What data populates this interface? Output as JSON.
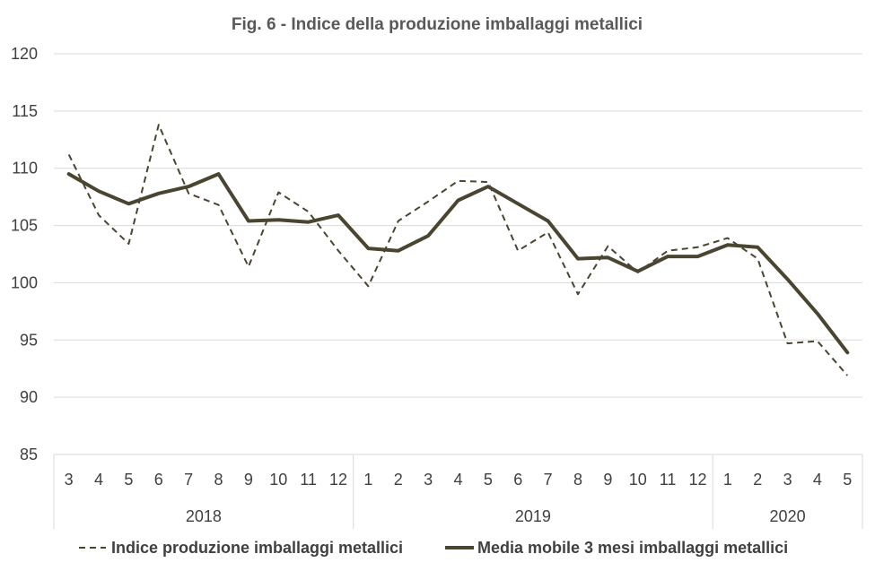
{
  "chart_data": {
    "type": "line",
    "title": "Fig. 6 - Indice della produzione imballaggi metallici",
    "xlabel": "",
    "ylabel": "",
    "ylim": [
      85,
      120
    ],
    "yticks": [
      "85",
      "90",
      "95",
      "100",
      "105",
      "110",
      "115",
      "120"
    ],
    "grid": true,
    "legend_position": "bottom",
    "categories": [
      "3",
      "4",
      "5",
      "6",
      "7",
      "8",
      "9",
      "10",
      "11",
      "12",
      "1",
      "2",
      "3",
      "4",
      "5",
      "6",
      "7",
      "8",
      "9",
      "10",
      "11",
      "12",
      "1",
      "2",
      "3",
      "4",
      "5"
    ],
    "year_groups": [
      {
        "label": "2018",
        "count": 10
      },
      {
        "label": "2019",
        "count": 12
      },
      {
        "label": "2020",
        "count": 5
      }
    ],
    "series": [
      {
        "name": "Indice produzione imballaggi metallici",
        "style": "dashed",
        "color": "#4a4530",
        "values": [
          111.2,
          105.9,
          103.4,
          113.8,
          107.8,
          106.8,
          101.4,
          107.9,
          106.2,
          102.8,
          99.7,
          105.4,
          107.1,
          108.9,
          108.8,
          102.8,
          104.4,
          99.0,
          103.2,
          100.9,
          102.8,
          103.1,
          103.9,
          102.1,
          94.7,
          94.9,
          91.9
        ]
      },
      {
        "name": "Media mobile 3 mesi imballaggi metallici",
        "style": "solid",
        "color": "#4a4530",
        "values": [
          109.5,
          108.0,
          106.9,
          107.8,
          108.4,
          109.5,
          105.4,
          105.5,
          105.3,
          105.9,
          103.0,
          102.8,
          104.1,
          107.2,
          108.4,
          106.9,
          105.4,
          102.1,
          102.2,
          101.0,
          102.3,
          102.3,
          103.3,
          103.1,
          100.3,
          97.3,
          93.9
        ]
      }
    ]
  }
}
